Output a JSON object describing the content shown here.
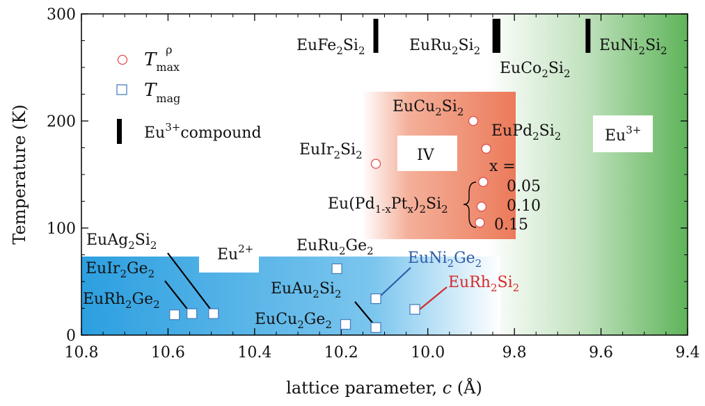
{
  "chart_data": {
    "type": "scatter",
    "xlabel": "lattice parameter, c (Å)",
    "ylabel": "Temperature (K)",
    "xlim": [
      10.8,
      9.4
    ],
    "ylim": [
      0,
      300
    ],
    "xticks": [
      "10.8",
      "10.6",
      "10.4",
      "10.2",
      "10.0",
      "9.8",
      "9.6",
      "9.4"
    ],
    "yticks": [
      "0",
      "100",
      "200",
      "300"
    ],
    "legend": {
      "position": "top-left",
      "entries": [
        {
          "key": "tmax",
          "symbol": "T",
          "sup": "ρ",
          "sub": "max",
          "color": "#e05050"
        },
        {
          "key": "tmag",
          "symbol": "T",
          "sub": "mag",
          "color": "#4a7fc0"
        },
        {
          "key": "eu3",
          "text": "Eu",
          "sup": "3+",
          "suffix": "compound",
          "color": "#000000"
        }
      ]
    },
    "regions": [
      {
        "label": "Eu",
        "sup": "2+",
        "color": "#3aa7e0"
      },
      {
        "label": "IV",
        "color": "#ee7c5c"
      },
      {
        "label": "Eu",
        "sup": "3+",
        "color": "#4caa4c"
      }
    ],
    "series": [
      {
        "name": "T_max",
        "marker": "circle",
        "color": "#e05050",
        "points": [
          {
            "x": 10.12,
            "y": 160,
            "label": "EuIr2Si2"
          },
          {
            "x": 9.895,
            "y": 200,
            "label": "EuCu2Si2"
          },
          {
            "x": 9.865,
            "y": 174,
            "label": "EuPd2Si2"
          },
          {
            "x": 9.872,
            "y": 143,
            "label": "x = 0.05"
          },
          {
            "x": 9.876,
            "y": 120,
            "label": "0.10"
          },
          {
            "x": 9.88,
            "y": 105,
            "label": "0.15"
          }
        ]
      },
      {
        "name": "T_mag",
        "marker": "square",
        "color": "#4a7fc0",
        "points": [
          {
            "x": 10.585,
            "y": 19,
            "label": "EuRh2Ge2"
          },
          {
            "x": 10.545,
            "y": 20,
            "label": "EuIr2Ge2"
          },
          {
            "x": 10.495,
            "y": 20,
            "label": "EuAg2Si2"
          },
          {
            "x": 10.21,
            "y": 62,
            "label": "EuRu2Ge2"
          },
          {
            "x": 10.19,
            "y": 10,
            "label": "EuCu2Ge2"
          },
          {
            "x": 10.12,
            "y": 7,
            "label": "EuAu2Si2"
          },
          {
            "x": 10.12,
            "y": 34,
            "label": "EuNi2Ge2"
          },
          {
            "x": 10.03,
            "y": 24,
            "label": "EuRh2Si2"
          }
        ]
      },
      {
        "name": "Eu3+ compound",
        "marker": "bar",
        "color": "#000000",
        "points": [
          {
            "x": 10.12,
            "label": "EuFe2Si2"
          },
          {
            "x": 9.845,
            "label": "EuRu2Si2"
          },
          {
            "x": 9.838,
            "label": "EuCo2Si2"
          },
          {
            "x": 9.63,
            "label": "EuNi2Si2"
          }
        ]
      }
    ],
    "labels": {
      "EuFe2Si2": {
        "base": "EuFe",
        "s1": "2",
        "mid": "Si",
        "s2": "2"
      },
      "EuRu2Si2": {
        "base": "EuRu",
        "s1": "2",
        "mid": "Si",
        "s2": "2"
      },
      "EuCo2Si2": {
        "base": "EuCo",
        "s1": "2",
        "mid": "Si",
        "s2": "2"
      },
      "EuNi2Si2": {
        "base": "EuNi",
        "s1": "2",
        "mid": "Si",
        "s2": "2"
      },
      "EuCu2Si2": {
        "base": "EuCu",
        "s1": "2",
        "mid": "Si",
        "s2": "2"
      },
      "EuPd2Si2": {
        "base": "EuPd",
        "s1": "2",
        "mid": "Si",
        "s2": "2"
      },
      "EuIr2Si2": {
        "base": "EuIr",
        "s1": "2",
        "mid": "Si",
        "s2": "2"
      },
      "EuAg2Si2": {
        "base": "EuAg",
        "s1": "2",
        "mid": "Si",
        "s2": "2"
      },
      "EuIr2Ge2": {
        "base": "EuIr",
        "s1": "2",
        "mid": "Ge",
        "s2": "2"
      },
      "EuRh2Ge2": {
        "base": "EuRh",
        "s1": "2",
        "mid": "Ge",
        "s2": "2"
      },
      "EuRu2Ge2": {
        "base": "EuRu",
        "s1": "2",
        "mid": "Ge",
        "s2": "2"
      },
      "EuNi2Ge2": {
        "base": "EuNi",
        "s1": "2",
        "mid": "Ge",
        "s2": "2"
      },
      "EuAu2Si2": {
        "base": "EuAu",
        "s1": "2",
        "mid": "Si",
        "s2": "2"
      },
      "EuRh2Si2": {
        "base": "EuRh",
        "s1": "2",
        "mid": "Si",
        "s2": "2"
      },
      "EuCu2Ge2": {
        "base": "EuCu",
        "s1": "2",
        "mid": "Ge",
        "s2": "2"
      },
      "alloy": {
        "pre": "Eu(Pd",
        "s1": "1-x",
        "mid": "Pt",
        "s2": "x",
        "post": ")",
        "s3": "2",
        "end": "Si",
        "s4": "2"
      },
      "x_eq": "x =",
      "x005": "0.05",
      "x010": "0.10",
      "x015": "0.15"
    }
  }
}
